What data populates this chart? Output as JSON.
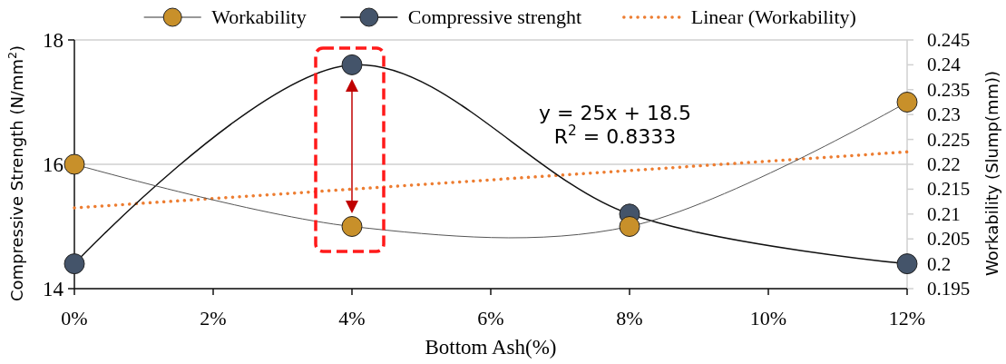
{
  "chart_data": {
    "type": "line",
    "xlabel": "Bottom Ash(%)",
    "ylabel": "Compressive Strength (N/mm$^{2}$)",
    "y2label": "Workability (Slump(mm))",
    "x": [
      0,
      4,
      8,
      12
    ],
    "xlim": [
      0,
      12
    ],
    "xticks": [
      {
        "value": 0,
        "label": "0%"
      },
      {
        "value": 2,
        "label": "2%"
      },
      {
        "value": 4,
        "label": "4%"
      },
      {
        "value": 6,
        "label": "6%"
      },
      {
        "value": 8,
        "label": "8%"
      },
      {
        "value": 10,
        "label": "10%"
      },
      {
        "value": 12,
        "label": "12%"
      }
    ],
    "ylim": [
      14,
      18
    ],
    "yticks": [
      14,
      16,
      18
    ],
    "y2lim": [
      0.195,
      0.245
    ],
    "y2ticks": [
      0.195,
      0.2,
      0.205,
      0.21,
      0.215,
      0.22,
      0.225,
      0.23,
      0.235,
      0.24,
      0.245
    ],
    "series": [
      {
        "name": "Workability",
        "color": "#c8902a",
        "values": [
          16,
          15,
          15,
          17
        ],
        "marker": "circle"
      },
      {
        "name": "Compressive strenght",
        "color": "#44546a",
        "values": [
          0.2,
          0.24,
          0.21,
          0.2
        ],
        "axis": "y2",
        "marker": "circle"
      },
      {
        "name": "Linear (Workability)",
        "color": "#ed7d31",
        "x": [
          0,
          12
        ],
        "values": [
          15.3,
          16.2
        ],
        "marker": "none",
        "line_style": "dotted"
      }
    ],
    "annotations": [
      "y = 25x + 18.5",
      "R$^{2}$ = 0.8333"
    ],
    "grid": "y",
    "legend": "top"
  }
}
